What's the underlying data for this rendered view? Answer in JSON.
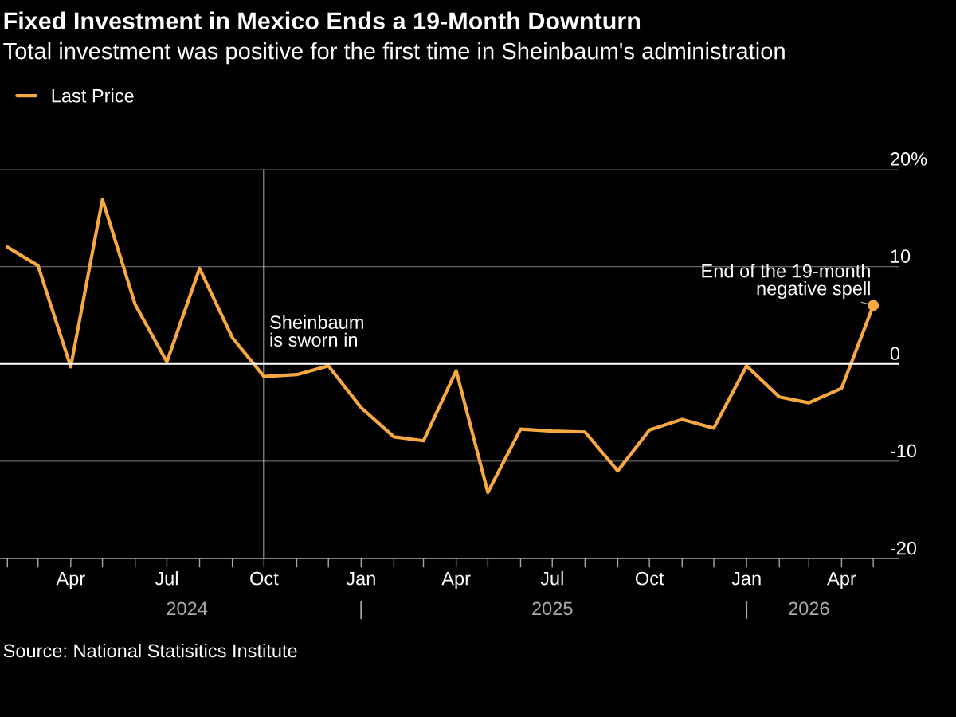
{
  "chart_data": {
    "type": "line",
    "title": "Fixed Investment in Mexico Ends a 19-Month Downturn",
    "subtitle": "Total investment was positive for the first time in Sheinbaum's administration",
    "x": [
      "2024-02",
      "2024-03",
      "2024-04",
      "2024-05",
      "2024-06",
      "2024-07",
      "2024-08",
      "2024-09",
      "2024-10",
      "2024-11",
      "2024-12",
      "2025-01",
      "2025-02",
      "2025-03",
      "2025-04",
      "2025-05",
      "2025-06",
      "2025-07",
      "2025-08",
      "2025-09",
      "2025-10",
      "2025-11",
      "2025-12",
      "2026-01",
      "2026-02",
      "2026-03",
      "2026-04",
      "2026-05"
    ],
    "series": [
      {
        "name": "Last Price",
        "color": "#f7a841",
        "values": [
          12.0,
          10.1,
          -0.3,
          16.9,
          6.1,
          0.2,
          9.8,
          2.7,
          -1.3,
          -1.1,
          -0.2,
          -4.5,
          -7.5,
          -7.9,
          -0.7,
          -13.2,
          -6.7,
          -6.9,
          -7.0,
          -11.0,
          -6.8,
          -5.7,
          -6.6,
          -0.2,
          -3.4,
          -4.0,
          -2.5,
          6.0
        ]
      }
    ],
    "xlim": [
      "2024-01-25",
      "2026-05-25"
    ],
    "xticks": [
      {
        "value": "2024-02",
        "label": null
      },
      {
        "value": "2024-03",
        "label": null
      },
      {
        "value": "2024-04",
        "label": "Apr"
      },
      {
        "value": "2024-05",
        "label": null
      },
      {
        "value": "2024-06",
        "label": null
      },
      {
        "value": "2024-07",
        "label": "Jul"
      },
      {
        "value": "2024-08",
        "label": null
      },
      {
        "value": "2024-09",
        "label": null
      },
      {
        "value": "2024-10",
        "label": "Oct"
      },
      {
        "value": "2024-11",
        "label": null
      },
      {
        "value": "2024-12",
        "label": null
      },
      {
        "value": "2025-01",
        "label": "Jan"
      },
      {
        "value": "2025-02",
        "label": null
      },
      {
        "value": "2025-03",
        "label": null
      },
      {
        "value": "2025-04",
        "label": "Apr"
      },
      {
        "value": "2025-05",
        "label": null
      },
      {
        "value": "2025-06",
        "label": null
      },
      {
        "value": "2025-07",
        "label": "Jul"
      },
      {
        "value": "2025-08",
        "label": null
      },
      {
        "value": "2025-09",
        "label": null
      },
      {
        "value": "2025-10",
        "label": "Oct"
      },
      {
        "value": "2025-11",
        "label": null
      },
      {
        "value": "2025-12",
        "label": null
      },
      {
        "value": "2026-01",
        "label": "Jan"
      },
      {
        "value": "2026-02",
        "label": null
      },
      {
        "value": "2026-03",
        "label": null
      },
      {
        "value": "2026-04",
        "label": "Apr"
      },
      {
        "value": "2026-05",
        "label": null
      }
    ],
    "x2lim": [
      "2024-01-25",
      "2026-05-25"
    ],
    "x2ticks": [
      {
        "value": "2024-07-20",
        "label": "2024"
      },
      {
        "value": "2025-01",
        "label": "|"
      },
      {
        "value": "2025-07-01",
        "label": "2025"
      },
      {
        "value": "2026-01",
        "label": "|"
      },
      {
        "value": "2026-03-01",
        "label": "2026"
      }
    ],
    "ylim": [
      -20,
      20
    ],
    "yticks": [
      {
        "value": 20,
        "label": "20%"
      },
      10,
      0,
      -10,
      -20
    ],
    "grid": "y",
    "legend": "top left",
    "ref_lines": [
      {
        "axis": "y",
        "value": 0,
        "label": null,
        "color": "#ffffff"
      },
      {
        "axis": "x",
        "value": "2024-10",
        "label": "Sheinbaum\nis sworn in",
        "color": "#ffffff"
      }
    ],
    "annotations": [
      {
        "text": "End of the 19-month\nnegative spell",
        "x": "2026-05",
        "y": 6.0
      },
      "Source: National Statisitics Institute"
    ]
  }
}
